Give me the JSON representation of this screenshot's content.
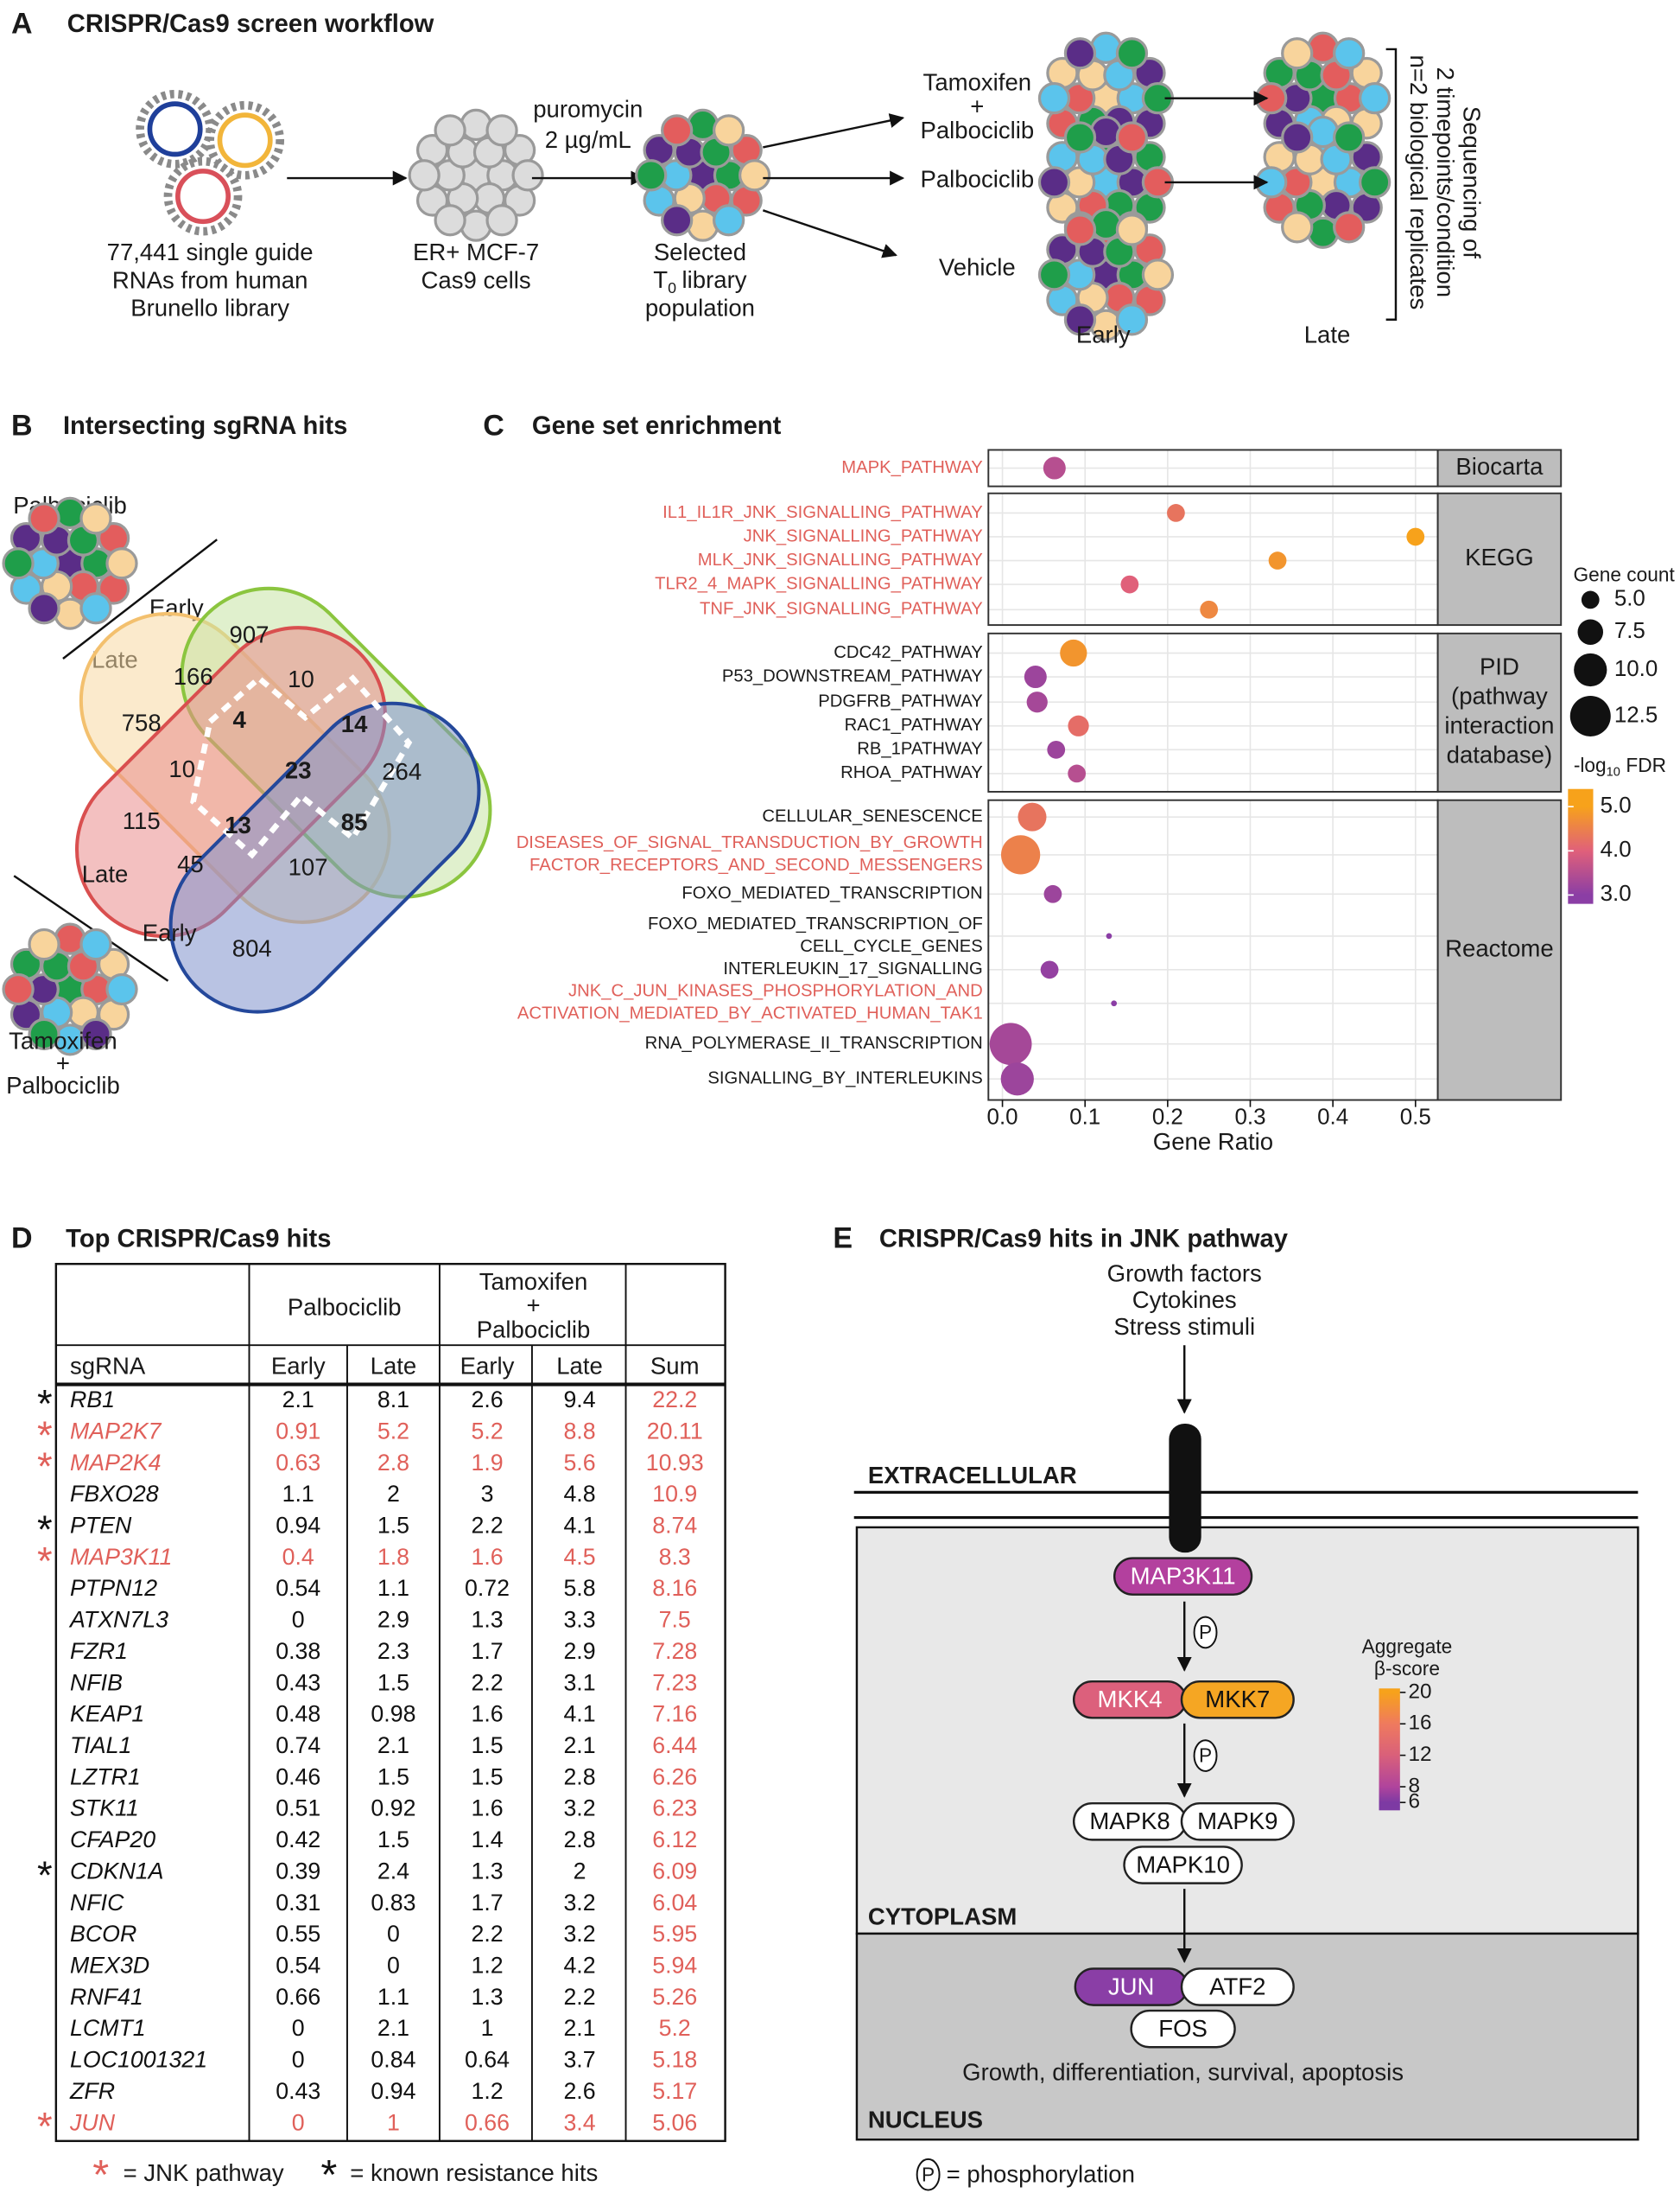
{
  "panel_a": {
    "letter": "A",
    "title": "CRISPR/Cas9 screen workflow",
    "library": [
      "77,441 single guide",
      "RNAs from human",
      "Brunello library"
    ],
    "cells": [
      "ER+ MCF-7",
      "Cas9 cells"
    ],
    "selection": [
      "puromycin",
      "2 µg/mL"
    ],
    "selected": {
      "line1": "Selected",
      "t": "T",
      "sub": "0",
      "rest": "library",
      "line3": "population"
    },
    "conditions": [
      [
        "Tamoxifen",
        "+",
        "Palbociclib"
      ],
      [
        "Palbociclib"
      ],
      [
        "Vehicle"
      ]
    ],
    "timepoints": [
      "Early",
      "Late"
    ],
    "sequencing": [
      "Sequencing of",
      "2 timepoints/condition",
      "n=2 biological replicates"
    ]
  },
  "panel_b": {
    "letter": "B",
    "title": "Intersecting sgRNA hits",
    "drug1": "Palbociclib",
    "drug1_labels": [
      "Early",
      "Late"
    ],
    "drug2_labels": [
      "Late",
      "Early"
    ],
    "drug2": [
      "Tamoxifen",
      "+",
      "Palbociclib"
    ],
    "regions": [
      {
        "count": 907,
        "bold": false
      },
      {
        "count": 166,
        "bold": false
      },
      {
        "count": 10,
        "bold": false
      },
      {
        "count": 758,
        "bold": false
      },
      {
        "count": 4,
        "bold": true
      },
      {
        "count": 14,
        "bold": true
      },
      {
        "count": 10,
        "bold": false
      },
      {
        "count": 23,
        "bold": true
      },
      {
        "count": 264,
        "bold": false
      },
      {
        "count": 115,
        "bold": false
      },
      {
        "count": 13,
        "bold": true
      },
      {
        "count": 85,
        "bold": true
      },
      {
        "count": 45,
        "bold": false
      },
      {
        "count": 107,
        "bold": false
      },
      {
        "count": 804,
        "bold": false
      }
    ]
  },
  "chart_data": {
    "type": "dot",
    "letter": "C",
    "title": "Gene set enrichment",
    "x_label": "Gene Ratio",
    "xlim": [
      -0.017,
      0.527
    ],
    "xticks": [
      {
        "value": 0,
        "label": "0.0"
      },
      0.1,
      0.2,
      0.3,
      0.4,
      0.5
    ],
    "grid": true,
    "groups": [
      {
        "name": "Biocarta",
        "categories": [
          "MAPK_PATHWAY"
        ],
        "label_colors": [
          "#e0605a"
        ],
        "x": [
          0.063
        ],
        "size": [
          6.5
        ],
        "color_values": [
          3.5
        ]
      },
      {
        "name": "KEGG",
        "categories": [
          "IL1_IL1R_JNK_SIGNALLING_PATHWAY",
          "JNK_SIGNALLING_PATHWAY",
          "MLK_JNK_SIGNALLING_PATHWAY",
          "TLR2_4_MAPK_SIGNALLING_PATHWAY",
          "TNF_JNK_SIGNALLING_PATHWAY"
        ],
        "label_colors": [
          "#e0605a",
          "#e0605a",
          "#e0605a",
          "#e0605a",
          "#e0605a"
        ],
        "x": [
          0.21,
          0.5,
          0.333,
          0.154,
          0.25
        ],
        "size": [
          5,
          5,
          5,
          5,
          5
        ],
        "color_values": [
          4.3,
          5.0,
          4.8,
          4.0,
          4.6
        ]
      },
      {
        "name": "PID\n(pathway\ninteraction\ndatabase)",
        "categories": [
          "CDC42_PATHWAY",
          "P53_DOWNSTREAM_PATHWAY",
          "PDGFRB_PATHWAY",
          "RAC1_PATHWAY",
          "RB_1PATHWAY",
          "RHOA_PATHWAY"
        ],
        "label_colors": [
          "#1a1a1a",
          "#1a1a1a",
          "#1a1a1a",
          "#1a1a1a",
          "#1a1a1a",
          "#1a1a1a"
        ],
        "x": [
          0.086,
          0.04,
          0.042,
          0.092,
          0.065,
          0.09
        ],
        "size": [
          8,
          6.5,
          6,
          6,
          5,
          5
        ],
        "color_values": [
          4.8,
          3.2,
          3.3,
          4.2,
          3.2,
          3.5
        ]
      },
      {
        "name": "Reactome",
        "categories": [
          "CELLULAR_SENESCENCE",
          "DISEASES_OF_SIGNAL_TRANSDUCTION_BY_GROWTH\nFACTOR_RECEPTORS_AND_SECOND_MESSENGERS",
          "FOXO_MEDIATED_TRANSCRIPTION",
          "FOXO_MEDIATED_TRANSCRIPTION_OF\nCELL_CYCLE_GENES",
          "INTERLEUKIN_17_SIGNALLING",
          "JNK_C_JUN_KINASES_PHOSPHORYLATION_AND\nACTIVATION_MEDIATED_BY_ACTIVATED_HUMAN_TAK1",
          "RNA_POLYMERASE_II_TRANSCRIPTION",
          "SIGNALLING_BY_INTERLEUKINS"
        ],
        "label_colors": [
          "#1a1a1a",
          "#e0605a",
          "#1a1a1a",
          "#1a1a1a",
          "#1a1a1a",
          "#e0605a",
          "#1a1a1a",
          "#1a1a1a"
        ],
        "x": [
          0.036,
          0.022,
          0.061,
          0.129,
          0.057,
          0.135,
          0.01,
          0.018
        ],
        "size": [
          8.5,
          12,
          5,
          1,
          5,
          1,
          13,
          10
        ],
        "color_values": [
          4.3,
          4.5,
          3.2,
          3.0,
          3.1,
          3.0,
          3.3,
          3.2
        ]
      }
    ],
    "size_legend": {
      "title": "Gene count",
      "values": [
        {
          "value": 5,
          "label": "5.0"
        },
        7.5,
        {
          "value": 10,
          "label": "10.0"
        },
        12.5
      ]
    },
    "color_legend": {
      "title": "-log",
      "sub": "10",
      "rest": "FDR",
      "lim": [
        2.8,
        5.4
      ],
      "ticks": [
        {
          "value": 3,
          "label": "3.0"
        },
        {
          "value": 4,
          "label": "4.0"
        },
        {
          "value": 5,
          "label": "5.0"
        }
      ],
      "colors": [
        "#8b3ea5",
        "#e0607a",
        "#f7a21b"
      ]
    }
  },
  "panel_d": {
    "letter": "D",
    "title": "Top CRISPR/Cas9 hits",
    "groups": [
      "Palbociclib",
      [
        "Tamoxifen",
        "+",
        "Palbociclib"
      ]
    ],
    "columns": [
      "sgRNA",
      "Early",
      "Late",
      "Early",
      "Late",
      "Sum"
    ],
    "jnk_color": "#e0605a",
    "text_color": "#111111",
    "sum_color": "#e0605a",
    "rows": [
      {
        "mark": "*",
        "jnk": false,
        "cells": [
          "RB1",
          2.1,
          8.1,
          2.6,
          9.4,
          22.2
        ]
      },
      {
        "mark": "*",
        "jnk": true,
        "cells": [
          "MAP2K7",
          0.91,
          5.2,
          5.2,
          8.8,
          20.11
        ]
      },
      {
        "mark": "*",
        "jnk": true,
        "cells": [
          "MAP2K4",
          0.63,
          2.8,
          1.9,
          5.6,
          10.93
        ]
      },
      {
        "jnk": false,
        "cells": [
          "FBXO28",
          1.1,
          2,
          3,
          4.8,
          10.9
        ]
      },
      {
        "mark": "*",
        "jnk": false,
        "cells": [
          "PTEN",
          0.94,
          1.5,
          2.2,
          4.1,
          8.74
        ]
      },
      {
        "mark": "*",
        "jnk": true,
        "cells": [
          "MAP3K11",
          0.4,
          1.8,
          1.6,
          4.5,
          8.3
        ]
      },
      {
        "jnk": false,
        "cells": [
          "PTPN12",
          0.54,
          1.1,
          0.72,
          5.8,
          8.16
        ]
      },
      {
        "jnk": false,
        "cells": [
          "ATXN7L3",
          0,
          2.9,
          1.3,
          3.3,
          7.5
        ]
      },
      {
        "jnk": false,
        "cells": [
          "FZR1",
          0.38,
          2.3,
          1.7,
          2.9,
          7.28
        ]
      },
      {
        "jnk": false,
        "cells": [
          "NFIB",
          0.43,
          1.5,
          2.2,
          3.1,
          7.23
        ]
      },
      {
        "jnk": false,
        "cells": [
          "KEAP1",
          0.48,
          0.98,
          1.6,
          4.1,
          7.16
        ]
      },
      {
        "jnk": false,
        "cells": [
          "TIAL1",
          0.74,
          2.1,
          1.5,
          2.1,
          6.44
        ]
      },
      {
        "jnk": false,
        "cells": [
          "LZTR1",
          0.46,
          1.5,
          1.5,
          2.8,
          6.26
        ]
      },
      {
        "jnk": false,
        "cells": [
          "STK11",
          0.51,
          0.92,
          1.6,
          3.2,
          6.23
        ]
      },
      {
        "jnk": false,
        "cells": [
          "CFAP20",
          0.42,
          1.5,
          1.4,
          2.8,
          6.12
        ]
      },
      {
        "mark": "*",
        "jnk": false,
        "cells": [
          "CDKN1A",
          0.39,
          2.4,
          1.3,
          2,
          6.09
        ]
      },
      {
        "jnk": false,
        "cells": [
          "NFIC",
          0.31,
          0.83,
          1.7,
          3.2,
          6.04
        ]
      },
      {
        "jnk": false,
        "cells": [
          "BCOR",
          0.55,
          0,
          2.2,
          3.2,
          5.95
        ]
      },
      {
        "jnk": false,
        "cells": [
          "MEX3D",
          0.54,
          0,
          1.2,
          4.2,
          5.94
        ]
      },
      {
        "jnk": false,
        "cells": [
          "RNF41",
          0.66,
          1.1,
          1.3,
          2.2,
          5.26
        ]
      },
      {
        "jnk": false,
        "cells": [
          "LCMT1",
          0,
          2.1,
          1,
          2.1,
          5.2
        ]
      },
      {
        "jnk": false,
        "cells": [
          "LOC1001321",
          0,
          0.84,
          0.64,
          3.7,
          5.18
        ]
      },
      {
        "jnk": false,
        "cells": [
          "ZFR",
          0.43,
          0.94,
          1.2,
          2.6,
          5.17
        ]
      },
      {
        "mark": "*",
        "jnk": true,
        "cells": [
          "JUN",
          0,
          1,
          0.66,
          3.4,
          5.06
        ]
      }
    ],
    "legend": [
      {
        "mark": "*",
        "color": "#e0605a",
        "text": "= JNK pathway"
      },
      {
        "mark": "*",
        "color": "#111111",
        "text": "= known resistance hits"
      }
    ]
  },
  "panel_e": {
    "letter": "E",
    "title": "CRISPR/Cas9 hits in JNK pathway",
    "stimuli": [
      "Growth factors",
      "Cytokines",
      "Stress stimuli"
    ],
    "compartments": [
      "EXTRACELLULAR",
      "CYTOPLASM",
      "NUCLEUS"
    ],
    "nodes": [
      {
        "label": "MAP3K11",
        "color": "#b3409e",
        "text_color": "#ffffff"
      },
      {
        "label": "MKK4",
        "color": "#dc607c",
        "text_color": "#ffffff"
      },
      {
        "label": "MKK7",
        "color": "#f5a623",
        "text_color": "#111111"
      },
      {
        "label": "MAPK8",
        "color": "#ffffff",
        "text_color": "#111111"
      },
      {
        "label": "MAPK9",
        "color": "#ffffff",
        "text_color": "#111111"
      },
      {
        "label": "MAPK10",
        "color": "#ffffff",
        "text_color": "#111111"
      },
      {
        "label": "JUN",
        "color": "#8a3ea6",
        "text_color": "#ffffff"
      },
      {
        "label": "ATF2",
        "color": "#ffffff",
        "text_color": "#111111"
      },
      {
        "label": "FOS",
        "color": "#ffffff",
        "text_color": "#111111"
      }
    ],
    "phospho": "P",
    "outcome": "Growth, differentiation, survival, apoptosis",
    "legend_title": [
      "Aggregate",
      "β-score"
    ],
    "legend_lim": [
      5,
      20.5
    ],
    "legend_ticks": [
      20,
      16,
      12,
      8,
      6
    ],
    "legend_colors": [
      "#f7a21b",
      "#ef7a5e",
      "#d9607a",
      "#b0449c",
      "#7d3aa3"
    ],
    "footer": "= phosphorylation"
  }
}
